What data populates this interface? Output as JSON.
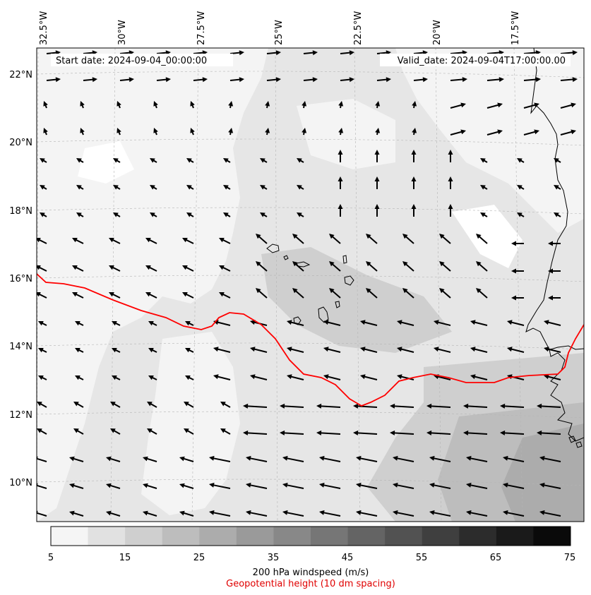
{
  "header": {
    "start_date": "Start date: 2024-09-04_00:00:00",
    "valid_date": "Valid_date: 2024-09-04T17:00:00.00"
  },
  "lon_labels": [
    "32.5°W",
    "30°W",
    "27.5°W",
    "25°W",
    "22.5°W",
    "20°W",
    "17.5°W"
  ],
  "lat_labels": [
    "22°N",
    "20°N",
    "18°N",
    "16°N",
    "14°N",
    "12°N",
    "10°N"
  ],
  "colorbar": {
    "ticks": [
      "5",
      "15",
      "25",
      "35",
      "45",
      "55",
      "65",
      "75"
    ],
    "levels": [
      5,
      10,
      15,
      20,
      25,
      30,
      35,
      40,
      45,
      50,
      55,
      60,
      65,
      70,
      75
    ],
    "colors": [
      "#f5f5f5",
      "#e1e1e1",
      "#cfcfcf",
      "#bdbdbd",
      "#acacac",
      "#9a9a9a",
      "#888888",
      "#767676",
      "#646464",
      "#525252",
      "#3f3f3f",
      "#2c2c2c",
      "#1a1a1a",
      "#0a0a0a"
    ],
    "title": "200 hPa windspeed (m/s)",
    "subtitle": "Geopotential height (10 dm spacing)"
  },
  "colors": {
    "contour": "#ff0000",
    "subtitle": "#e00000",
    "vectors": "#000000",
    "coast": "#000000"
  }
}
